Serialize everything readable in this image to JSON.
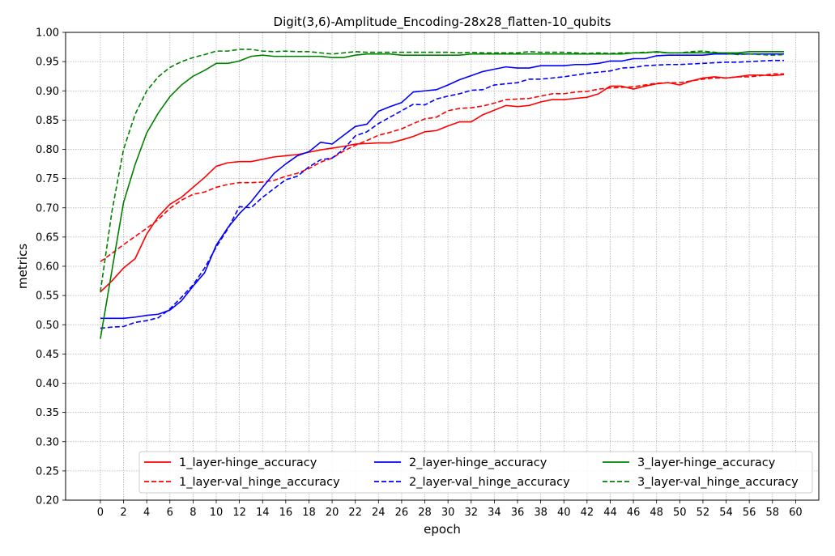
{
  "chart_data": {
    "type": "line",
    "title": "Digit(3,6)-Amplitude_Encoding-28x28_flatten-10_qubits",
    "xlabel": "epoch",
    "ylabel": "metrics",
    "xlim": [
      -3,
      62
    ],
    "ylim": [
      0.2,
      1.0
    ],
    "xticks": [
      0,
      2,
      4,
      6,
      8,
      10,
      12,
      14,
      16,
      18,
      20,
      22,
      24,
      26,
      28,
      30,
      32,
      34,
      36,
      38,
      40,
      42,
      44,
      46,
      48,
      50,
      52,
      54,
      56,
      58,
      60
    ],
    "yticks": [
      0.2,
      0.25,
      0.3,
      0.35,
      0.4,
      0.45,
      0.5,
      0.55,
      0.6,
      0.65,
      0.7,
      0.75,
      0.8,
      0.85,
      0.9,
      0.95,
      1.0
    ],
    "ytick_labels": [
      "0.20",
      "0.25",
      "0.30",
      "0.35",
      "0.40",
      "0.45",
      "0.50",
      "0.55",
      "0.60",
      "0.65",
      "0.70",
      "0.75",
      "0.80",
      "0.85",
      "0.90",
      "0.95",
      "1.00"
    ],
    "grid": true,
    "legend_position": "lower-right",
    "legend_columns": 3,
    "series": [
      {
        "name": "1_layer-hinge_accuracy",
        "color": "#ff0000",
        "style": "solid",
        "values": [
          0.556,
          0.575,
          0.597,
          0.613,
          0.655,
          0.685,
          0.706,
          0.718,
          0.735,
          0.752,
          0.771,
          0.777,
          0.779,
          0.779,
          0.783,
          0.787,
          0.789,
          0.791,
          0.795,
          0.799,
          0.802,
          0.805,
          0.809,
          0.81,
          0.811,
          0.811,
          0.816,
          0.822,
          0.83,
          0.832,
          0.84,
          0.847,
          0.847,
          0.859,
          0.867,
          0.875,
          0.873,
          0.875,
          0.881,
          0.885,
          0.885,
          0.887,
          0.889,
          0.895,
          0.908,
          0.908,
          0.903,
          0.908,
          0.912,
          0.914,
          0.91,
          0.917,
          0.922,
          0.924,
          0.922,
          0.924,
          0.927,
          0.927,
          0.926,
          0.928
        ]
      },
      {
        "name": "1_layer-val_hinge_accuracy",
        "color": "#ff0000",
        "style": "dashed",
        "values": [
          0.608,
          0.622,
          0.637,
          0.651,
          0.665,
          0.68,
          0.699,
          0.713,
          0.723,
          0.727,
          0.735,
          0.74,
          0.743,
          0.743,
          0.744,
          0.747,
          0.754,
          0.759,
          0.767,
          0.778,
          0.785,
          0.797,
          0.807,
          0.815,
          0.824,
          0.829,
          0.835,
          0.844,
          0.852,
          0.855,
          0.866,
          0.87,
          0.871,
          0.874,
          0.879,
          0.885,
          0.886,
          0.887,
          0.891,
          0.895,
          0.895,
          0.898,
          0.899,
          0.903,
          0.905,
          0.906,
          0.907,
          0.91,
          0.913,
          0.914,
          0.914,
          0.917,
          0.92,
          0.922,
          0.922,
          0.924,
          0.924,
          0.926,
          0.929,
          0.929
        ]
      },
      {
        "name": "2_layer-hinge_accuracy",
        "color": "#0000ff",
        "style": "solid",
        "values": [
          0.511,
          0.511,
          0.511,
          0.513,
          0.516,
          0.518,
          0.525,
          0.541,
          0.566,
          0.589,
          0.636,
          0.666,
          0.69,
          0.71,
          0.735,
          0.759,
          0.775,
          0.789,
          0.796,
          0.812,
          0.809,
          0.824,
          0.839,
          0.843,
          0.865,
          0.873,
          0.88,
          0.898,
          0.9,
          0.902,
          0.91,
          0.919,
          0.926,
          0.933,
          0.937,
          0.941,
          0.939,
          0.939,
          0.943,
          0.943,
          0.943,
          0.945,
          0.945,
          0.947,
          0.951,
          0.951,
          0.955,
          0.955,
          0.96,
          0.961,
          0.961,
          0.961,
          0.961,
          0.963,
          0.963,
          0.963,
          0.963,
          0.963,
          0.963,
          0.963
        ]
      },
      {
        "name": "2_layer-val_hinge_accuracy",
        "color": "#0000ff",
        "style": "dashed",
        "values": [
          0.494,
          0.496,
          0.497,
          0.504,
          0.507,
          0.512,
          0.527,
          0.547,
          0.568,
          0.597,
          0.633,
          0.664,
          0.702,
          0.7,
          0.718,
          0.733,
          0.748,
          0.754,
          0.77,
          0.782,
          0.785,
          0.8,
          0.823,
          0.83,
          0.844,
          0.855,
          0.866,
          0.877,
          0.876,
          0.886,
          0.891,
          0.895,
          0.901,
          0.902,
          0.91,
          0.912,
          0.914,
          0.92,
          0.92,
          0.922,
          0.924,
          0.927,
          0.93,
          0.932,
          0.934,
          0.939,
          0.94,
          0.943,
          0.944,
          0.945,
          0.945,
          0.946,
          0.947,
          0.948,
          0.949,
          0.949,
          0.95,
          0.951,
          0.952,
          0.952
        ]
      },
      {
        "name": "3_layer-hinge_accuracy",
        "color": "#008000",
        "style": "solid",
        "values": [
          0.476,
          0.593,
          0.709,
          0.774,
          0.828,
          0.862,
          0.89,
          0.91,
          0.925,
          0.935,
          0.947,
          0.947,
          0.951,
          0.959,
          0.961,
          0.959,
          0.959,
          0.959,
          0.959,
          0.959,
          0.957,
          0.957,
          0.961,
          0.963,
          0.963,
          0.963,
          0.961,
          0.961,
          0.961,
          0.961,
          0.961,
          0.961,
          0.963,
          0.963,
          0.963,
          0.963,
          0.963,
          0.963,
          0.963,
          0.963,
          0.963,
          0.963,
          0.963,
          0.963,
          0.963,
          0.963,
          0.965,
          0.965,
          0.967,
          0.965,
          0.965,
          0.965,
          0.965,
          0.965,
          0.965,
          0.965,
          0.967,
          0.967,
          0.967,
          0.967
        ]
      },
      {
        "name": "3_layer-val_hinge_accuracy",
        "color": "#008000",
        "style": "dashed",
        "values": [
          0.556,
          0.694,
          0.8,
          0.86,
          0.9,
          0.924,
          0.94,
          0.95,
          0.957,
          0.962,
          0.968,
          0.968,
          0.971,
          0.971,
          0.968,
          0.967,
          0.968,
          0.967,
          0.967,
          0.965,
          0.963,
          0.965,
          0.967,
          0.966,
          0.966,
          0.966,
          0.966,
          0.966,
          0.966,
          0.966,
          0.966,
          0.965,
          0.966,
          0.965,
          0.965,
          0.965,
          0.965,
          0.967,
          0.966,
          0.966,
          0.966,
          0.965,
          0.964,
          0.965,
          0.964,
          0.965,
          0.965,
          0.966,
          0.966,
          0.965,
          0.965,
          0.967,
          0.968,
          0.966,
          0.964,
          0.962,
          0.963,
          0.962,
          0.961,
          0.962
        ]
      }
    ]
  }
}
